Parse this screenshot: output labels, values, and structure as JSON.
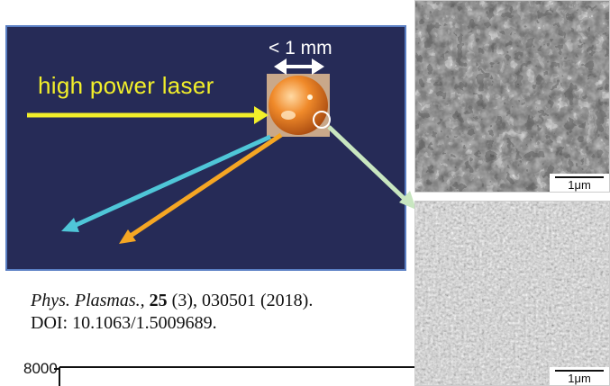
{
  "diagram": {
    "laser_label": "high power laser",
    "target_size_label": "< 1 mm",
    "colors": {
      "panel_background": "#262b57",
      "panel_border": "#5a7fc4",
      "laser_arrow": "#f2ef2a",
      "blue_beam": "#4fc6d8",
      "orange_beam": "#f5a623",
      "zoom_connector": "#c8e6c0"
    }
  },
  "citation": {
    "journal": "Phys. Plasmas.,",
    "volume": "25",
    "issue_pages_year": " (3), 030501 (2018).",
    "doi": "DOI: 10.1063/1.5009689."
  },
  "micrographs": {
    "top_scale_label": "1μm",
    "bottom_scale_label": "1μm"
  },
  "axis": {
    "tick_label": "8000"
  }
}
